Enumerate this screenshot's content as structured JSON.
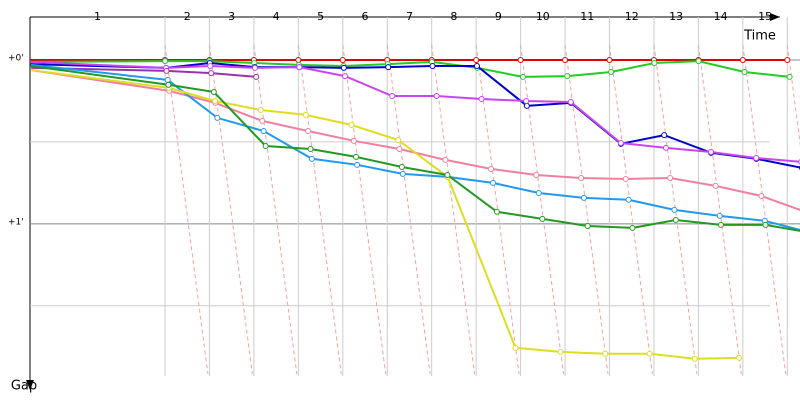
{
  "chart_data": {
    "type": "gap",
    "x_label": "Time",
    "y_label": "Gap",
    "lap_labels": [
      "1",
      "2",
      "3",
      "4",
      "5",
      "6",
      "7",
      "8",
      "9",
      "10",
      "11",
      "12",
      "13",
      "14",
      "15"
    ],
    "x": [
      0,
      1,
      2,
      3,
      4,
      5,
      6,
      7,
      8,
      9,
      10,
      11,
      12,
      13,
      14,
      15
    ],
    "ylim": [
      0,
      115
    ],
    "yticks": [
      {
        "value": 0,
        "label": "+0'"
      },
      {
        "value": 60,
        "label": "+1'"
      }
    ],
    "minor_grid": [
      30,
      90
    ],
    "series": [
      {
        "color": "#e00000",
        "values": [
          0,
          0,
          0,
          0,
          0,
          0,
          0,
          0,
          0,
          0,
          0,
          0,
          0,
          0,
          0,
          0
        ]
      },
      {
        "color": "#22cc22",
        "values": [
          0.7,
          0.4,
          0.4,
          1.1,
          1.8,
          2.2,
          1.5,
          0.7,
          2.9,
          6.2,
          5.9,
          4.4,
          1.1,
          0.4,
          4.4,
          6.2
        ]
      },
      {
        "color": "#0000cc",
        "values": [
          1.5,
          2.9,
          1.1,
          2.6,
          2.6,
          2.9,
          2.6,
          2.2,
          2.2,
          16.8,
          15.7,
          30.7,
          27.5,
          34.0,
          36.2,
          39.5
        ]
      },
      {
        "color": "#cc44ee",
        "values": [
          0.7,
          2.9,
          2.2,
          2.9,
          2.6,
          5.9,
          13.2,
          13.2,
          14.3,
          15.0,
          15.4,
          30.4,
          32.2,
          33.7,
          35.9,
          37.3
        ]
      },
      {
        "color": "#9933aa",
        "values": [
          2.9,
          4.0,
          4.8,
          6.2,
          null,
          null,
          null,
          null,
          null,
          null,
          null,
          null,
          null,
          null,
          null,
          null
        ]
      },
      {
        "color": "#f080a0",
        "values": [
          3.7,
          11.3,
          15.7,
          22.3,
          26.0,
          29.6,
          32.6,
          36.6,
          39.9,
          42.1,
          43.2,
          43.6,
          43.2,
          46.1,
          49.8,
          56.0
        ]
      },
      {
        "color": "#2299ee",
        "values": [
          1.8,
          7.3,
          21.2,
          26.0,
          36.2,
          38.4,
          41.7,
          42.8,
          45.0,
          48.7,
          50.5,
          51.2,
          54.9,
          57.1,
          58.9,
          63.3
        ]
      },
      {
        "color": "#dddd22",
        "values": [
          3.7,
          10.2,
          15.0,
          18.3,
          20.1,
          23.8,
          29.3,
          42.8,
          105.4,
          106.9,
          107.6,
          107.6,
          109.4,
          109.1,
          null,
          null
        ]
      },
      {
        "color": "#229922",
        "values": [
          2.2,
          9.1,
          11.7,
          31.5,
          32.6,
          35.5,
          39.2,
          42.1,
          55.6,
          58.2,
          60.8,
          61.5,
          58.6,
          60.4,
          60.4,
          63.3
        ]
      }
    ]
  }
}
